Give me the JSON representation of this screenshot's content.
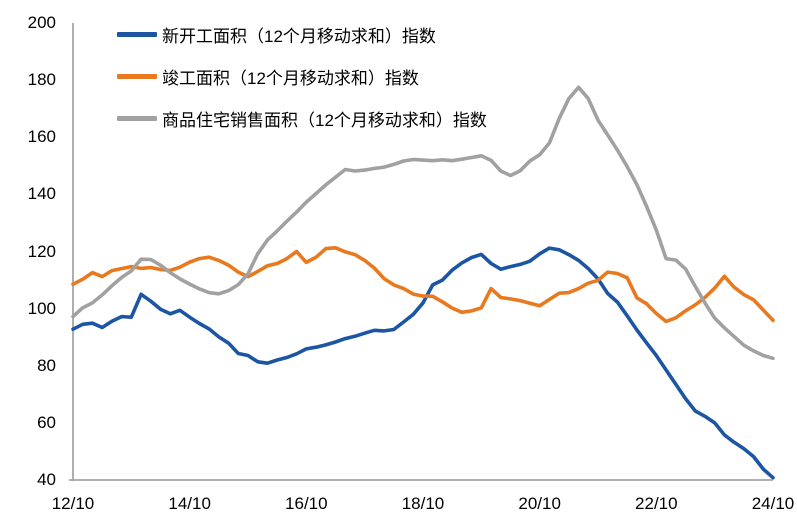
{
  "chart_data": {
    "type": "line",
    "title": "",
    "xlabel": "",
    "ylabel": "",
    "grid": false,
    "legend_position": "top-left",
    "x_axis": {
      "tick_labels": [
        "12/10",
        "14/10",
        "16/10",
        "18/10",
        "20/10",
        "22/10",
        "24/10"
      ],
      "tick_months": [
        0,
        24,
        48,
        72,
        96,
        120,
        144
      ],
      "range_months": [
        0,
        144
      ],
      "note": "months since 2012-10, monthly series sampled every 2 months"
    },
    "y_axis": {
      "ticks": [
        40,
        60,
        80,
        100,
        120,
        140,
        160,
        180,
        200
      ],
      "range": [
        40,
        200
      ]
    },
    "sample_step_months": 2,
    "series": [
      {
        "name": "新开工面积（12个月移动求和）指数",
        "color": "#1B55A4",
        "values": [
          92.8,
          94.5,
          94.9,
          93.4,
          95.6,
          97.2,
          97,
          105,
          102.6,
          99.8,
          98.2,
          99.4,
          97,
          94.8,
          92.9,
          90.1,
          87.9,
          84.3,
          83.6,
          81.4,
          80.9,
          82,
          82.9,
          84.2,
          85.9,
          86.5,
          87.3,
          88.3,
          89.5,
          90.3,
          91.4,
          92.4,
          92.2,
          92.7,
          95.3,
          98,
          102,
          108.3,
          110,
          113.5,
          116,
          117.9,
          119,
          115.8,
          113.8,
          114.7,
          115.5,
          116.6,
          119.2,
          121.2,
          120.6,
          118.9,
          116.9,
          114,
          110.4,
          105.3,
          102.3,
          97.5,
          92.5,
          88,
          83.6,
          78.5,
          73.5,
          68.5,
          64.2,
          62.3,
          60,
          55.8,
          53.2,
          51,
          48.2,
          43.8,
          40.8
        ]
      },
      {
        "name": "竣工面积（12个月移动求和）指数",
        "color": "#E8791F",
        "values": [
          108.5,
          110.3,
          112.6,
          111.2,
          113.3,
          114,
          114.7,
          114.1,
          114.4,
          113.7,
          113.4,
          114.5,
          116.3,
          117.5,
          118,
          116.9,
          115.2,
          112.8,
          111.2,
          113,
          115,
          115.8,
          117.5,
          120,
          116.2,
          118,
          121,
          121.3,
          119.9,
          118.9,
          116.9,
          114.2,
          110.5,
          108.3,
          107,
          105.1,
          104.4,
          104.3,
          102.4,
          100.2,
          98.7,
          99.2,
          100.3,
          107,
          103.9,
          103.4,
          102.8,
          101.9,
          101,
          103.2,
          105.4,
          105.6,
          107,
          108.9,
          109.9,
          112.8,
          112.3,
          110.8,
          103.8,
          101.7,
          98.3,
          95.5,
          96.8,
          99.2,
          101.3,
          103.9,
          107.2,
          111.3,
          107.5,
          104.9,
          103.1,
          99.5,
          95.9
        ]
      },
      {
        "name": "商品住宅销售面积（12个月移动求和）指数",
        "color": "#A1A1A1",
        "values": [
          97.2,
          100.3,
          102,
          104.8,
          108,
          110.9,
          113.2,
          117.3,
          117.2,
          115.2,
          112.6,
          110.4,
          108.6,
          106.9,
          105.6,
          105.2,
          106.3,
          108.4,
          112.2,
          119.2,
          124,
          127.2,
          130.6,
          133.8,
          137.3,
          140.3,
          143.3,
          146,
          148.7,
          148.2,
          148.5,
          149.1,
          149.5,
          150.5,
          151.7,
          152.2,
          152,
          151.8,
          152.1,
          151.8,
          152.3,
          152.9,
          153.5,
          151.9,
          148.2,
          146.6,
          148.3,
          151.7,
          153.9,
          158,
          166.5,
          173.5,
          177.5,
          173.5,
          166,
          160.8,
          155.5,
          149.7,
          143.4,
          135.8,
          127.5,
          117.5,
          117,
          113.9,
          107.8,
          102,
          96.7,
          93.3,
          90.2,
          87.2,
          85.2,
          83.6,
          82.6
        ]
      }
    ]
  },
  "colors": {
    "axis": "#A6A6A6",
    "text": "#000000",
    "background": "#FFFFFF"
  }
}
